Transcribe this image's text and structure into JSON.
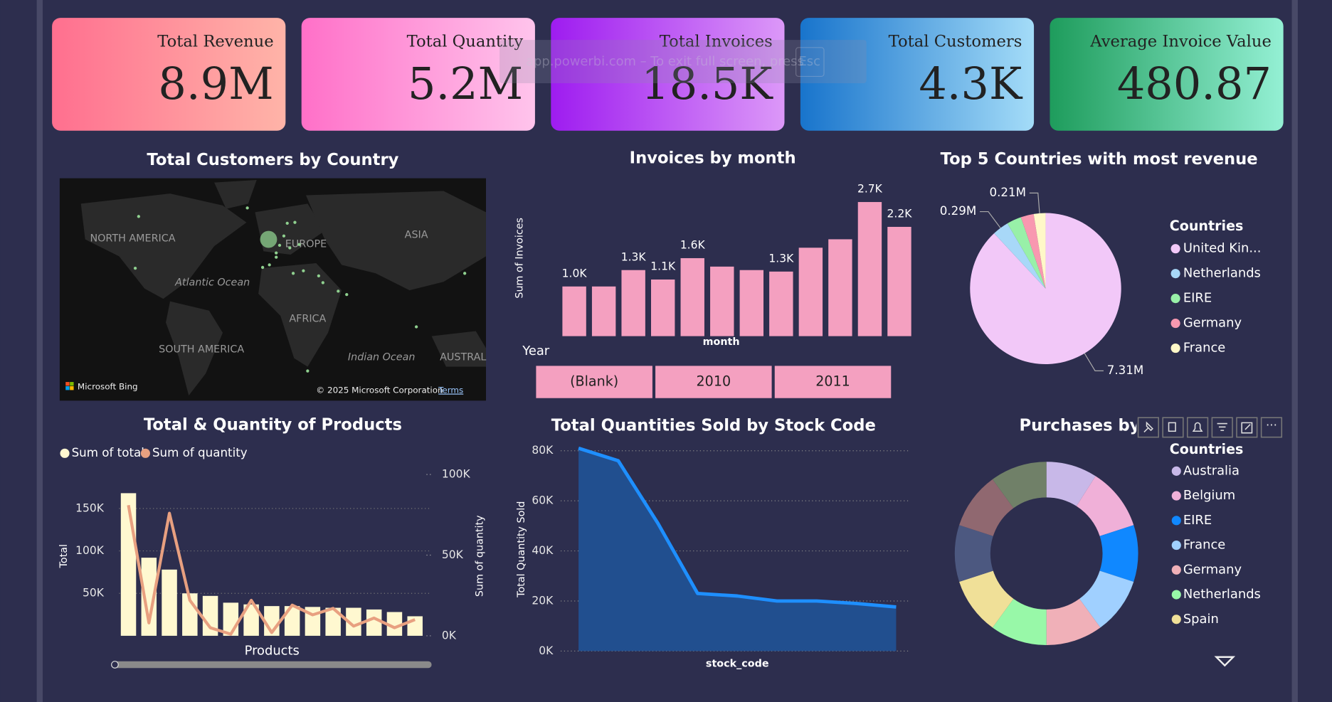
{
  "notice": "app.powerbi.com – To exit full screen, press",
  "notice_key": "Esc",
  "cards": [
    {
      "title": "Total Revenue",
      "value": "8.9M"
    },
    {
      "title": "Total Quantity",
      "value": "5.2M"
    },
    {
      "title": "Total Invoices",
      "value": "18.5K"
    },
    {
      "title": "Total Customers",
      "value": "4.3K"
    },
    {
      "title": "Average Invoice Value",
      "value": "480.87"
    }
  ],
  "slicer": {
    "title": "Year",
    "options": [
      "(Blank)",
      "2010",
      "2011"
    ]
  },
  "chart_data": [
    {
      "type": "map",
      "title": "Total Customers by Country",
      "labels": [
        "NORTH AMERICA",
        "EUROPE",
        "ASIA",
        "Atlantic Ocean",
        "AFRICA",
        "SOUTH AMERICA",
        "Indian Ocean",
        "AUSTRAL"
      ],
      "provider": "Microsoft Bing",
      "attribution": "© 2025 Microsoft Corporation",
      "terms": "Terms"
    },
    {
      "type": "bar",
      "title": "Invoices by month",
      "y_label": "Sum of Invoices",
      "x_label": "month",
      "color": "#f4a0c0",
      "categories": [
        null,
        null,
        null,
        null,
        null,
        null,
        null,
        null,
        null,
        null,
        null,
        null
      ],
      "values": [
        1000,
        1000,
        1330,
        1140,
        1570,
        1400,
        1330,
        1300,
        1780,
        1950,
        2700,
        2200
      ],
      "value_labels": [
        "1.0K",
        null,
        "1.3K",
        "1.1K",
        "1.6K",
        null,
        null,
        "1.3K",
        null,
        null,
        "2.7K",
        "2.2K"
      ]
    },
    {
      "type": "pie",
      "title": "Top 5 Countries with most revenue",
      "legend_title": "Countries",
      "categories": [
        "United Kin...",
        "Netherlands",
        "EIRE",
        "Germany",
        "France"
      ],
      "values": [
        7.31,
        0.29,
        0.26,
        0.23,
        0.21
      ],
      "value_labels": [
        "7.31M",
        "0.29M",
        null,
        null,
        "0.21M"
      ],
      "colors": [
        "#f2c8f8",
        "#a8d8f8",
        "#98f0a8",
        "#f898b0",
        "#fff8c8"
      ]
    },
    {
      "type": "combo",
      "title": "Total & Quantity of Products",
      "y_label": "Total",
      "y2_label": "Sum of quantity",
      "x_label": "Products",
      "categories": [
        null,
        null,
        null,
        null,
        null,
        null,
        null,
        null,
        null,
        null,
        null,
        null,
        null,
        null,
        null
      ],
      "series": [
        {
          "name": "Sum of total",
          "color": "#fff8d0",
          "values": [
            168000,
            92000,
            78000,
            50000,
            47000,
            39000,
            37000,
            35000,
            35000,
            34000,
            33000,
            33000,
            31000,
            28000,
            23000
          ]
        },
        {
          "name": "Sum of quantity",
          "color": "#e8a080",
          "axis": "y2",
          "values": [
            81000,
            8000,
            76000,
            22000,
            5000,
            1000,
            22000,
            2000,
            19000,
            13000,
            17000,
            6000,
            11000,
            5000,
            10000
          ]
        }
      ],
      "ylim": [
        0,
        190000
      ],
      "yticks": [
        {
          "value": 50000,
          "label": "50K"
        },
        {
          "value": 100000,
          "label": "100K"
        },
        {
          "value": 150000,
          "label": "150K"
        }
      ],
      "y2lim": [
        0,
        100000
      ],
      "y2ticks": [
        {
          "value": 0,
          "label": "0K"
        },
        {
          "value": 50000,
          "label": "50K"
        },
        {
          "value": 100000,
          "label": "100K"
        }
      ],
      "grid": true
    },
    {
      "type": "area",
      "title": "Total Quantities Sold by Stock Code",
      "y_label": "Total Quantity Sold",
      "x_label": "stock_code",
      "color": "#1e8fff",
      "fill": "#214f8f",
      "categories": [
        null,
        null,
        null,
        null,
        null,
        null,
        null,
        null,
        null
      ],
      "values": [
        81000,
        76000,
        51000,
        23000,
        22000,
        20000,
        20000,
        19000,
        17600
      ],
      "ylim": [
        0,
        80000
      ],
      "yticks": [
        {
          "value": 0,
          "label": "0K"
        },
        {
          "value": 20000,
          "label": "20K"
        },
        {
          "value": 40000,
          "label": "40K"
        },
        {
          "value": 60000,
          "label": "60K"
        },
        {
          "value": 80000,
          "label": "80K"
        }
      ],
      "grid": true
    },
    {
      "type": "donut",
      "title": "Purchases by Country",
      "legend_title": "Countries",
      "categories": [
        "Australia",
        "Belgium",
        "EIRE",
        "France",
        "Germany",
        "Netherlands",
        "Spain",
        null,
        null,
        null
      ],
      "values": [
        9,
        11,
        10,
        10,
        10,
        10,
        10,
        10,
        10,
        10
      ],
      "colors": [
        "#c8b8e8",
        "#f0b0d8",
        "#1088ff",
        "#a0d0ff",
        "#f0b0b8",
        "#98f8a8",
        "#f0e098",
        "#4c5880",
        "#906870",
        "#708068"
      ]
    }
  ]
}
